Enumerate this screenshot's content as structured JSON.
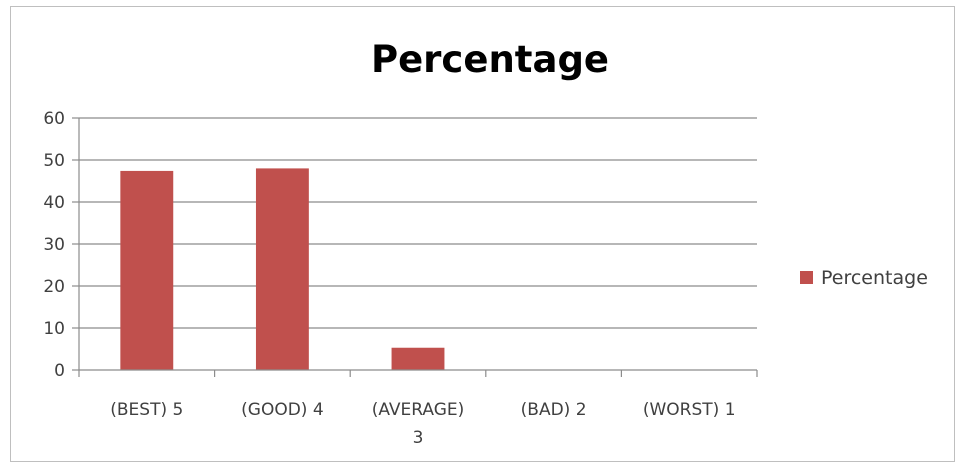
{
  "chart_data": {
    "type": "bar",
    "title": "Percentage",
    "categories": [
      "(BEST) 5",
      "(GOOD) 4",
      "(AVERAGE) 3",
      "(BAD) 2",
      "(WORST) 1"
    ],
    "series": [
      {
        "name": "Percentage",
        "values": [
          47.4,
          48.0,
          5.3,
          0,
          0
        ],
        "color": "#c0504d"
      }
    ],
    "ylim": [
      0,
      60
    ],
    "yticks": [
      0,
      10,
      20,
      30,
      40,
      50,
      60
    ],
    "grid": true,
    "legend_position": "right"
  }
}
